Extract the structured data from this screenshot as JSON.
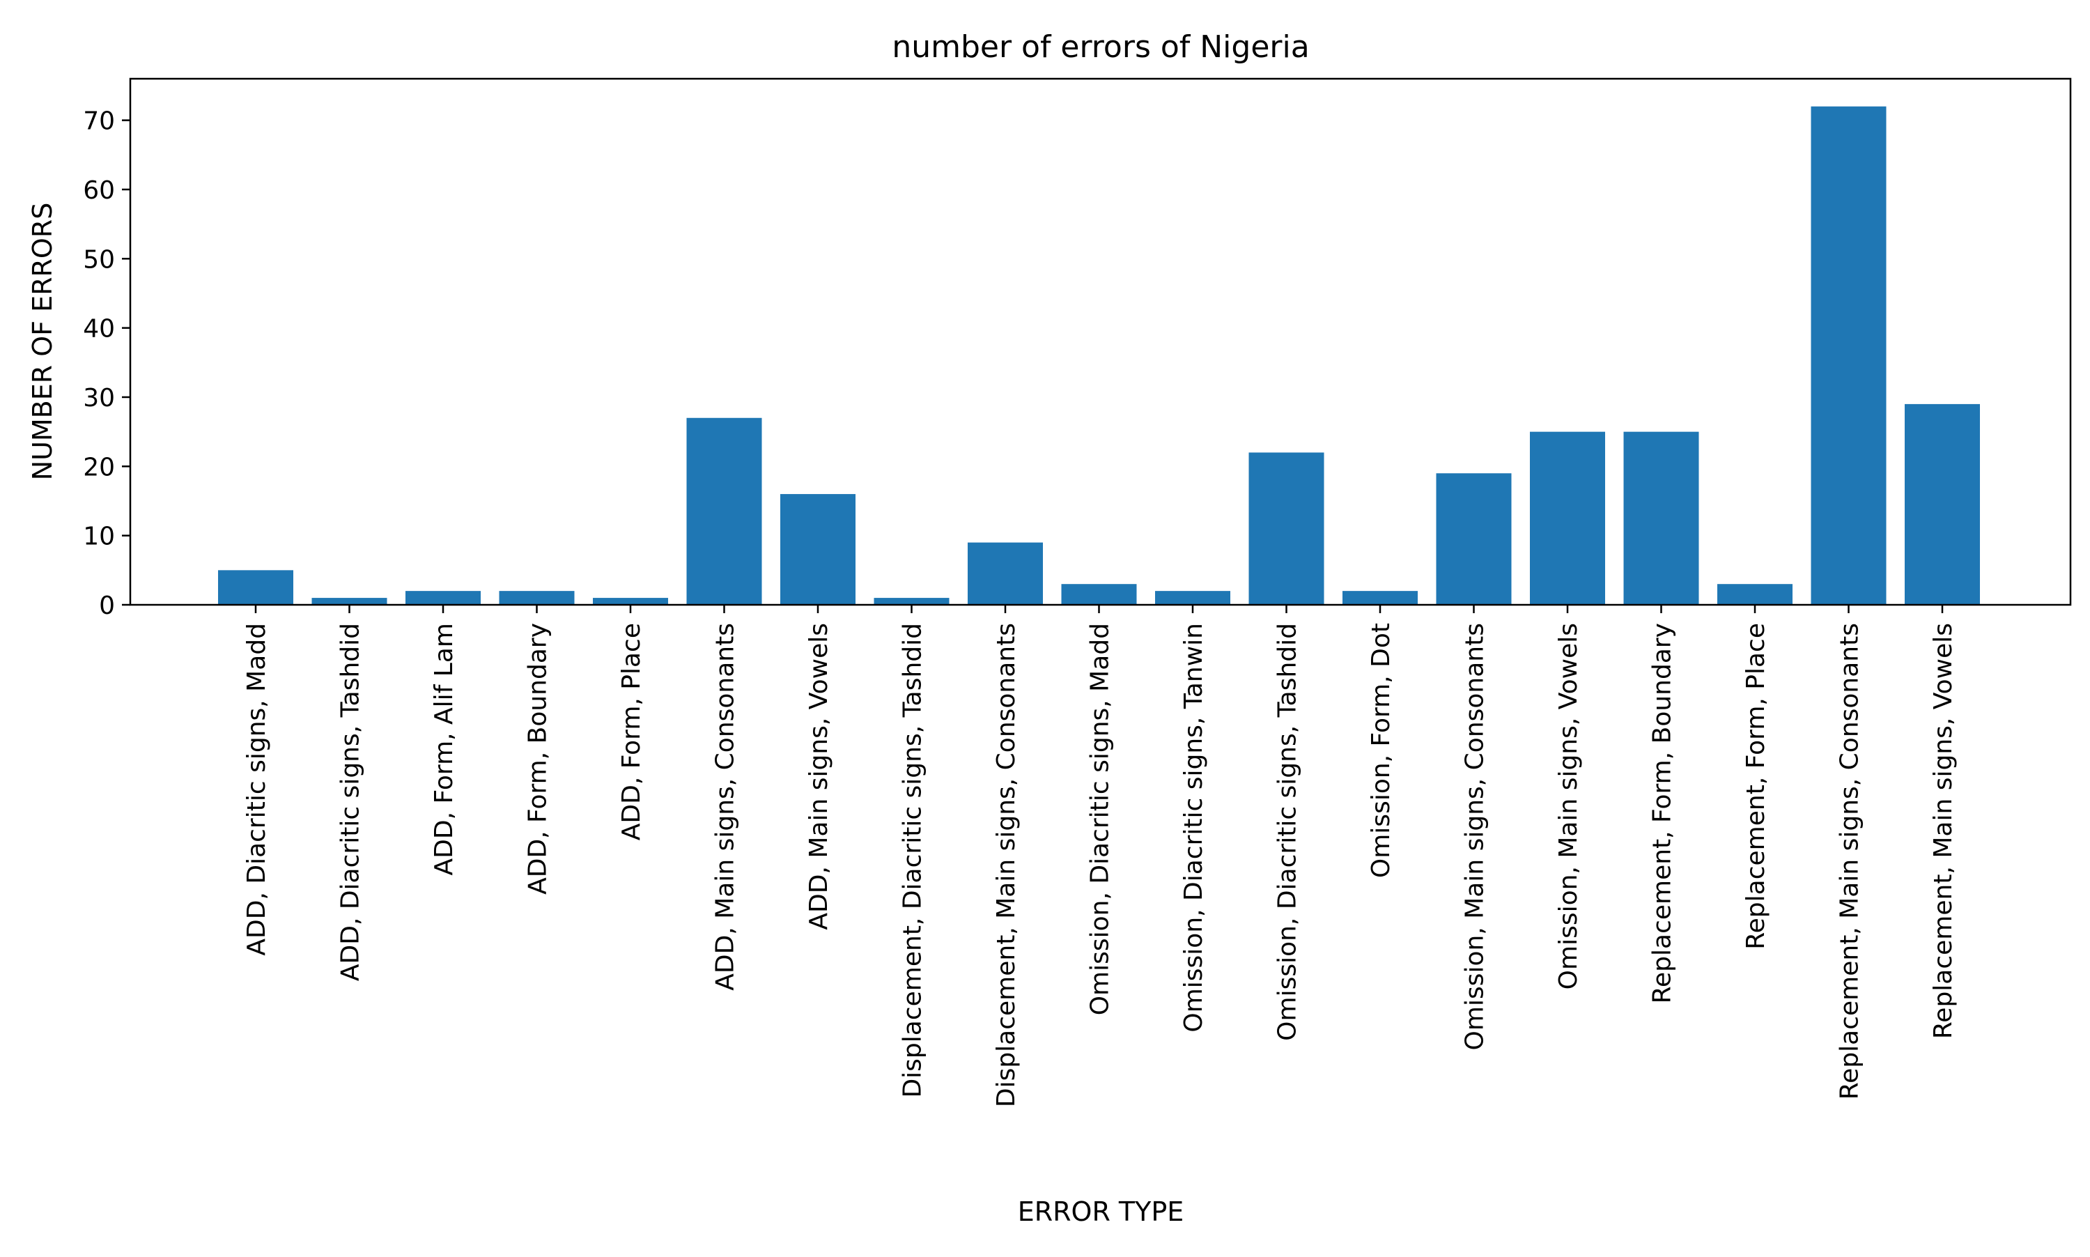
{
  "chart_data": {
    "type": "bar",
    "title": "number of errors of Nigeria",
    "xlabel": "ERROR TYPE",
    "ylabel": "NUMBER OF ERRORS",
    "ylim": [
      0,
      76
    ],
    "yticks": [
      0,
      10,
      20,
      30,
      40,
      50,
      60,
      70
    ],
    "grid": false,
    "bar_color": "#1f77b4",
    "categories": [
      "ADD, Diacritic signs, Madd",
      "ADD, Diacritic signs, Tashdid",
      "ADD, Form, Alif Lam",
      "ADD, Form, Boundary",
      "ADD, Form, Place",
      "ADD, Main signs, Consonants",
      "ADD, Main signs, Vowels",
      "Displacement, Diacritic signs, Tashdid",
      "Displacement, Main signs, Consonants",
      "Omission, Diacritic signs, Madd",
      "Omission, Diacritic signs, Tanwin",
      "Omission, Diacritic signs, Tashdid",
      "Omission, Form, Dot",
      "Omission, Main signs, Consonants",
      "Omission, Main signs, Vowels",
      "Replacement, Form, Boundary",
      "Replacement, Form, Place",
      "Replacement, Main signs, Consonants",
      "Replacement, Main signs, Vowels"
    ],
    "values": [
      5,
      1,
      2,
      2,
      1,
      27,
      16,
      1,
      9,
      3,
      2,
      22,
      2,
      19,
      25,
      25,
      3,
      72,
      29
    ]
  }
}
